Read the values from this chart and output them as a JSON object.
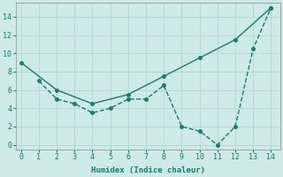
{
  "line1_x": [
    0,
    2,
    4,
    6,
    8,
    10,
    12,
    14
  ],
  "line1_y": [
    9,
    6,
    4.5,
    5.5,
    7.5,
    9.5,
    11.5,
    15
  ],
  "line2_x": [
    1,
    2,
    3,
    4,
    5,
    6,
    7,
    8,
    9,
    10,
    11,
    12,
    13,
    14
  ],
  "line2_y": [
    7,
    5,
    4.5,
    3.5,
    4,
    5,
    5,
    6.5,
    2,
    1.5,
    0,
    2,
    10.5,
    15
  ],
  "line_color": "#1a7a6e",
  "bg_color": "#cdeae5",
  "grid_color": "#afd8d2",
  "xlabel": "Humidex (Indice chaleur)",
  "xlim": [
    -0.3,
    14.5
  ],
  "ylim": [
    -0.5,
    15.5
  ],
  "xticks": [
    0,
    1,
    2,
    3,
    4,
    5,
    6,
    7,
    8,
    9,
    10,
    11,
    12,
    13,
    14
  ],
  "yticks": [
    0,
    2,
    4,
    6,
    8,
    10,
    12,
    14
  ],
  "xlabel_fontsize": 6.5,
  "tick_fontsize": 6,
  "line_width": 1.0,
  "marker_size": 2.5
}
